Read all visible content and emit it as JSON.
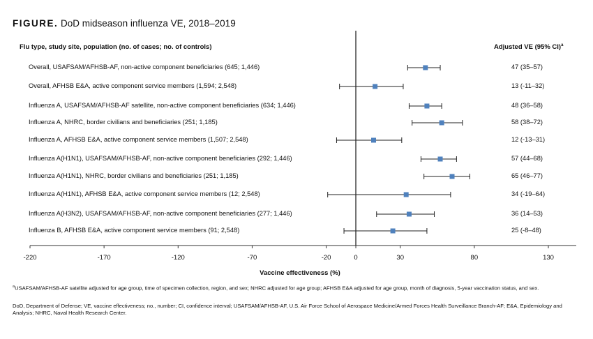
{
  "figure": {
    "label": "FIGURE.",
    "title": "DoD midseason influenza VE, 2018–2019"
  },
  "columns": {
    "left_header": "Flu type, study site, population (no. of cases; no. of controls)",
    "right_header": "Adjusted VE (95% CI)",
    "right_header_mark": "a"
  },
  "chart_data": {
    "type": "scatter",
    "subtype": "forest-plot",
    "title": "DoD midseason influenza VE, 2018–2019",
    "xlabel": "Vaccine effectiveness (%)",
    "ylabel": "",
    "xlim": [
      -220,
      150
    ],
    "xticks": [
      -220,
      -170,
      -120,
      -70,
      -20,
      0,
      30,
      80,
      130
    ],
    "xtick_labels": [
      "-220",
      "-170",
      "-120",
      "-70",
      "-20",
      "0",
      "30",
      "80",
      "130"
    ],
    "reference_line": 0,
    "marker_color": "#4f81bd",
    "rows": [
      {
        "label": "Overall, USAFSAM/AFHSB-AF, non-active component beneficiaries (645; 1,446)",
        "ve": 47,
        "lower": 35,
        "upper": 57,
        "text": "47 (35–57)"
      },
      {
        "label": "Overall, AFHSB E&A, active component service members (1,594; 2,548)",
        "ve": 13,
        "lower": -11,
        "upper": 32,
        "text": "13 (-11–32)"
      },
      {
        "label": "Influenza A, USAFSAM/AFHSB-AF satellite, non-active component beneficiaries (634; 1,446)",
        "ve": 48,
        "lower": 36,
        "upper": 58,
        "text": "48 (36–58)"
      },
      {
        "label": "Influenza A, NHRC, border civilians and beneficiaries (251; 1,185)",
        "ve": 58,
        "lower": 38,
        "upper": 72,
        "text": "58 (38–72)"
      },
      {
        "label": "Influenza A, AFHSB E&A, active component service members (1,507; 2,548)",
        "ve": 12,
        "lower": -13,
        "upper": 31,
        "text": "12 (-13–31)"
      },
      {
        "label": "Influenza A(H1N1), USAFSAM/AFHSB-AF, non-active component beneficiaries (292; 1,446)",
        "ve": 57,
        "lower": 44,
        "upper": 68,
        "text": "57 (44–68)"
      },
      {
        "label": "Influenza A(H1N1), NHRC, border civilians and beneficiaries (251; 1,185)",
        "ve": 65,
        "lower": 46,
        "upper": 77,
        "text": "65 (46–77)"
      },
      {
        "label": "Influenza A(H1N1), AFHSB E&A, active component service members (12; 2,548)",
        "ve": 34,
        "lower": -19,
        "upper": 64,
        "text": "34 (-19–64)"
      },
      {
        "label": "Influenza A(H3N2), USAFSAM/AFHSB-AF, non-active component beneficiaries (277; 1,446)",
        "ve": 36,
        "lower": 14,
        "upper": 53,
        "text": "36 (14–53)"
      },
      {
        "label": "Influenza B, AFHSB E&A, active component service members (91; 2,548)",
        "ve": 25,
        "lower": -8,
        "upper": 48,
        "text": "25 (-8–48)"
      }
    ]
  },
  "footnotes": {
    "adjustment_mark": "a",
    "adjustment": "USAFSAM/AFHSB-AF satellite adjusted for age group, time of specimen collection, region, and sex; NHRC adjusted for age group; AFHSB E&A adjusted for age group, month of diagnosis, 5-year vaccination status, and sex.",
    "abbreviations": "DoD, Department of Defense; VE, vaccine effectiveness; no., number; CI, confidence interval; USAFSAM/AFHSB-AF, U.S. Air Force School of Aerospace Medicine/Armed Forces Health Surveillance Branch-AF; E&A, Epidemiology and Analysis; NHRC, Naval Health Research Center."
  }
}
